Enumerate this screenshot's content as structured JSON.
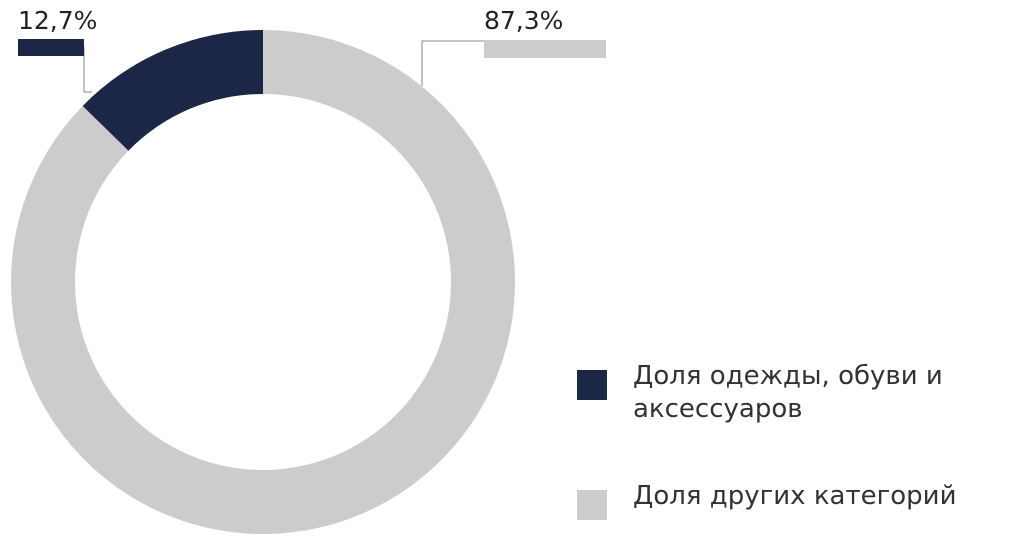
{
  "chart_data": {
    "type": "pie",
    "donut": true,
    "categories": [
      "Доля одежды, обуви и аксессуаров",
      "Доля других категорий"
    ],
    "values": [
      12.7,
      87.3
    ],
    "value_labels": [
      "12,7%",
      "87,3%"
    ],
    "colors": [
      "#1c2647",
      "#cccccc"
    ]
  }
}
